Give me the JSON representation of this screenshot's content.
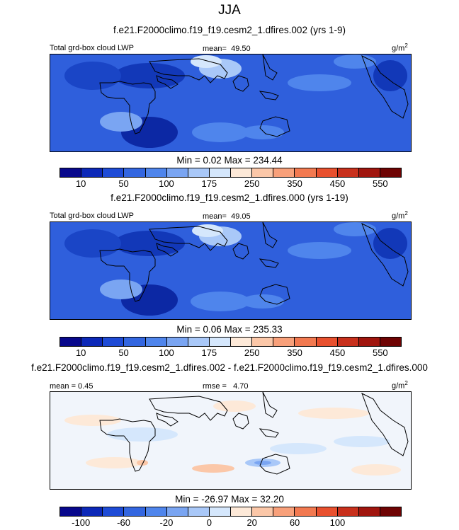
{
  "season": "JJA",
  "unit": "g/m",
  "unit_exp": "2",
  "panels": [
    {
      "title": "f.e21.F2000climo.f19_f19.cesm2_1.dfires.002 (yrs 1-9)",
      "left_label": "Total grd-box cloud LWP",
      "mean_label": "mean=",
      "mean_value": "49.50",
      "minmax": "Min =   0.02 Max = 234.44"
    },
    {
      "title": "f.e21.F2000climo.f19_f19.cesm2_1.dfires.000 (yrs 1-19)",
      "left_label": "Total grd-box cloud LWP",
      "mean_label": "mean=",
      "mean_value": "49.05",
      "minmax": "Min =   0.06 Max = 235.33"
    },
    {
      "title": "f.e21.F2000climo.f19_f19.cesm2_1.dfires.002 - f.e21.F2000climo.f19_f19.cesm2_1.dfires.000",
      "left_label": "mean =   0.45",
      "rmse_label": "rmse =",
      "rmse_value": "4.70",
      "minmax": "Min = -26.97 Max =  32.20"
    }
  ],
  "colorbar_abs": {
    "colors": [
      "#08088c",
      "#0c28b8",
      "#1e4bd6",
      "#3366e0",
      "#4f85ec",
      "#7aa5f2",
      "#a9c8f8",
      "#d5e7fc",
      "#fde9d8",
      "#fbc7a8",
      "#f8a07a",
      "#f27950",
      "#e8502e",
      "#c8301c",
      "#a0150e",
      "#6e0303"
    ],
    "tick_labels": [
      "10",
      "50",
      "100",
      "175",
      "250",
      "350",
      "450",
      "550"
    ]
  },
  "colorbar_diff": {
    "colors": [
      "#08088c",
      "#0c28b8",
      "#1e4bd6",
      "#3366e0",
      "#4f85ec",
      "#7aa5f2",
      "#a9c8f8",
      "#d5e7fc",
      "#fde9d8",
      "#fbc7a8",
      "#f8a07a",
      "#f27950",
      "#e8502e",
      "#c8301c",
      "#a0150e",
      "#6e0303"
    ],
    "tick_labels": [
      "-100",
      "-60",
      "-20",
      "0",
      "20",
      "60",
      "100"
    ]
  }
}
